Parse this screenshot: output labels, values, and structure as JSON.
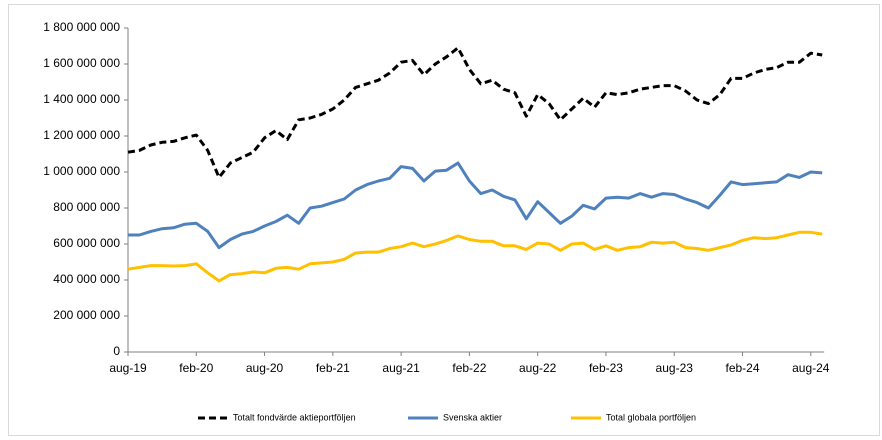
{
  "chart_data": {
    "type": "line",
    "categories": [
      "aug-19",
      null,
      null,
      null,
      null,
      null,
      "feb-20",
      null,
      null,
      null,
      null,
      null,
      "aug-20",
      null,
      null,
      null,
      null,
      null,
      "feb-21",
      null,
      null,
      null,
      null,
      null,
      "aug-21",
      null,
      null,
      null,
      null,
      null,
      "feb-22",
      null,
      null,
      null,
      null,
      null,
      "aug-22",
      null,
      null,
      null,
      null,
      null,
      "feb-23",
      null,
      null,
      null,
      null,
      null,
      "aug-23",
      null,
      null,
      null,
      null,
      null,
      "feb-24",
      null,
      null,
      null,
      null,
      null,
      "aug-24",
      null
    ],
    "series": [
      {
        "name": "Totalt fondvärde aktieportföljen",
        "color": "#000000",
        "dashed": true,
        "values": [
          1110000000,
          1120000000,
          1150000000,
          1165000000,
          1170000000,
          1190000000,
          1205000000,
          1120000000,
          970000000,
          1050000000,
          1080000000,
          1110000000,
          1190000000,
          1230000000,
          1180000000,
          1290000000,
          1300000000,
          1320000000,
          1350000000,
          1400000000,
          1470000000,
          1490000000,
          1510000000,
          1550000000,
          1610000000,
          1620000000,
          1540000000,
          1600000000,
          1640000000,
          1690000000,
          1570000000,
          1490000000,
          1510000000,
          1460000000,
          1440000000,
          1310000000,
          1430000000,
          1380000000,
          1290000000,
          1350000000,
          1410000000,
          1360000000,
          1440000000,
          1430000000,
          1440000000,
          1460000000,
          1470000000,
          1480000000,
          1480000000,
          1450000000,
          1400000000,
          1380000000,
          1430000000,
          1520000000,
          1520000000,
          1550000000,
          1570000000,
          1580000000,
          1610000000,
          1610000000,
          1660000000,
          1650000000
        ]
      },
      {
        "name": "Svenska aktier",
        "color": "#4f81bd",
        "dashed": false,
        "values": [
          650000000,
          650000000,
          670000000,
          685000000,
          690000000,
          710000000,
          715000000,
          670000000,
          580000000,
          625000000,
          655000000,
          670000000,
          700000000,
          725000000,
          760000000,
          715000000,
          800000000,
          810000000,
          830000000,
          850000000,
          900000000,
          930000000,
          950000000,
          965000000,
          1030000000,
          1020000000,
          950000000,
          1005000000,
          1010000000,
          1050000000,
          950000000,
          880000000,
          900000000,
          865000000,
          845000000,
          740000000,
          835000000,
          775000000,
          715000000,
          755000000,
          815000000,
          795000000,
          855000000,
          860000000,
          855000000,
          880000000,
          860000000,
          880000000,
          875000000,
          850000000,
          830000000,
          800000000,
          870000000,
          945000000,
          930000000,
          935000000,
          940000000,
          945000000,
          985000000,
          970000000,
          1000000000,
          995000000
        ]
      },
      {
        "name": "Total globala portföljen",
        "color": "#ffc000",
        "dashed": false,
        "values": [
          460000000,
          470000000,
          480000000,
          480000000,
          478000000,
          480000000,
          490000000,
          440000000,
          395000000,
          430000000,
          435000000,
          445000000,
          440000000,
          465000000,
          470000000,
          460000000,
          490000000,
          495000000,
          500000000,
          515000000,
          550000000,
          555000000,
          555000000,
          575000000,
          585000000,
          605000000,
          585000000,
          600000000,
          620000000,
          645000000,
          625000000,
          615000000,
          615000000,
          590000000,
          590000000,
          570000000,
          605000000,
          600000000,
          565000000,
          600000000,
          605000000,
          570000000,
          590000000,
          565000000,
          580000000,
          585000000,
          610000000,
          605000000,
          610000000,
          580000000,
          575000000,
          565000000,
          580000000,
          595000000,
          620000000,
          635000000,
          630000000,
          635000000,
          650000000,
          665000000,
          665000000,
          655000000
        ]
      }
    ],
    "ylim": [
      0,
      1800000000
    ],
    "yticks": [
      0,
      {
        "value": 200000000,
        "label": "200 000 000"
      },
      {
        "value": 400000000,
        "label": "400 000 000"
      },
      {
        "value": 600000000,
        "label": "600 000 000"
      },
      {
        "value": 800000000,
        "label": "800 000 000"
      },
      {
        "value": 1000000000,
        "label": "1 000 000 000"
      },
      {
        "value": 1200000000,
        "label": "1 200 000 000"
      },
      {
        "value": 1400000000,
        "label": "1 400 000 000"
      },
      {
        "value": 1600000000,
        "label": "1 600 000 000"
      },
      {
        "value": 1800000000,
        "label": "1 800 000 000"
      }
    ],
    "legend": "bottom",
    "grid": false
  }
}
